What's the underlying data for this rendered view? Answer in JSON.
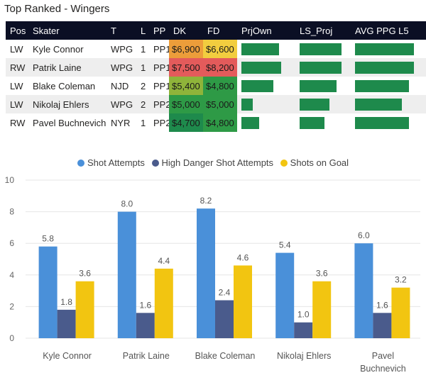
{
  "title": "Top Ranked - Wingers",
  "columns": [
    "Pos",
    "Skater",
    "T",
    "L",
    "PP",
    "DK",
    "FD",
    "PrjOwn",
    "LS_Proj",
    "AVG PPG L5"
  ],
  "rows": [
    {
      "pos": "LW",
      "skater": "Kyle Connor",
      "team": "WPG",
      "line": "1",
      "pp": "PP1",
      "dk": "$6,900",
      "fd": "$6,600",
      "dk_color": "#ec9d3a",
      "fd_color": "#f2cd3f",
      "prjown": 0.75,
      "ls_proj": 0.82,
      "avg_ppg": 0.92
    },
    {
      "pos": "RW",
      "skater": "Patrik Laine",
      "team": "WPG",
      "line": "1",
      "pp": "PP1",
      "dk": "$7,500",
      "fd": "$8,200",
      "dk_color": "#e35b5b",
      "fd_color": "#e35b5b",
      "prjown": 0.8,
      "ls_proj": 0.82,
      "avg_ppg": 0.92
    },
    {
      "pos": "LW",
      "skater": "Blake Coleman",
      "team": "NJD",
      "line": "2",
      "pp": "PP1",
      "dk": "$5,400",
      "fd": "$4,800",
      "dk_color": "#8fb43a",
      "fd_color": "#2e9a46",
      "prjown": 0.64,
      "ls_proj": 0.72,
      "avg_ppg": 0.84
    },
    {
      "pos": "LW",
      "skater": "Nikolaj Ehlers",
      "team": "WPG",
      "line": "2",
      "pp": "PP2",
      "dk": "$5,000",
      "fd": "$5,000",
      "dk_color": "#2e9a46",
      "fd_color": "#2e9a46",
      "prjown": 0.23,
      "ls_proj": 0.58,
      "avg_ppg": 0.73
    },
    {
      "pos": "RW",
      "skater": "Pavel Buchnevich",
      "team": "NYR",
      "line": "1",
      "pp": "PP2",
      "dk": "$4,700",
      "fd": "$4,800",
      "dk_color": "#1e8a4c",
      "fd_color": "#2e9a46",
      "prjown": 0.35,
      "ls_proj": 0.48,
      "avg_ppg": 0.84
    }
  ],
  "chart_data": {
    "type": "bar",
    "categories": [
      "Kyle Connor",
      "Patrik Laine",
      "Blake Coleman",
      "Nikolaj Ehlers",
      "Pavel Buchnevich"
    ],
    "series": [
      {
        "name": "Shot Attempts",
        "color": "#4a90d9",
        "values": [
          5.8,
          8.0,
          8.2,
          5.4,
          6.0
        ],
        "labels": [
          "5.8",
          "8.0",
          "8.2",
          "5.4",
          "6.0"
        ]
      },
      {
        "name": "High Danger Shot Attempts",
        "color": "#4a5b8c",
        "values": [
          1.8,
          1.6,
          2.4,
          1.0,
          1.6
        ],
        "labels": [
          "1.8",
          "1.6",
          "2.4",
          "1.0",
          "1.6"
        ]
      },
      {
        "name": "Shots on Goal",
        "color": "#f2c511",
        "values": [
          3.6,
          4.4,
          4.6,
          3.6,
          3.2
        ],
        "labels": [
          "3.6",
          "4.4",
          "4.6",
          "3.6",
          "3.2"
        ]
      }
    ],
    "yticks": [
      "0",
      "2",
      "4",
      "6",
      "8",
      "10"
    ],
    "ylim": [
      0,
      10
    ],
    "legend": "top"
  }
}
